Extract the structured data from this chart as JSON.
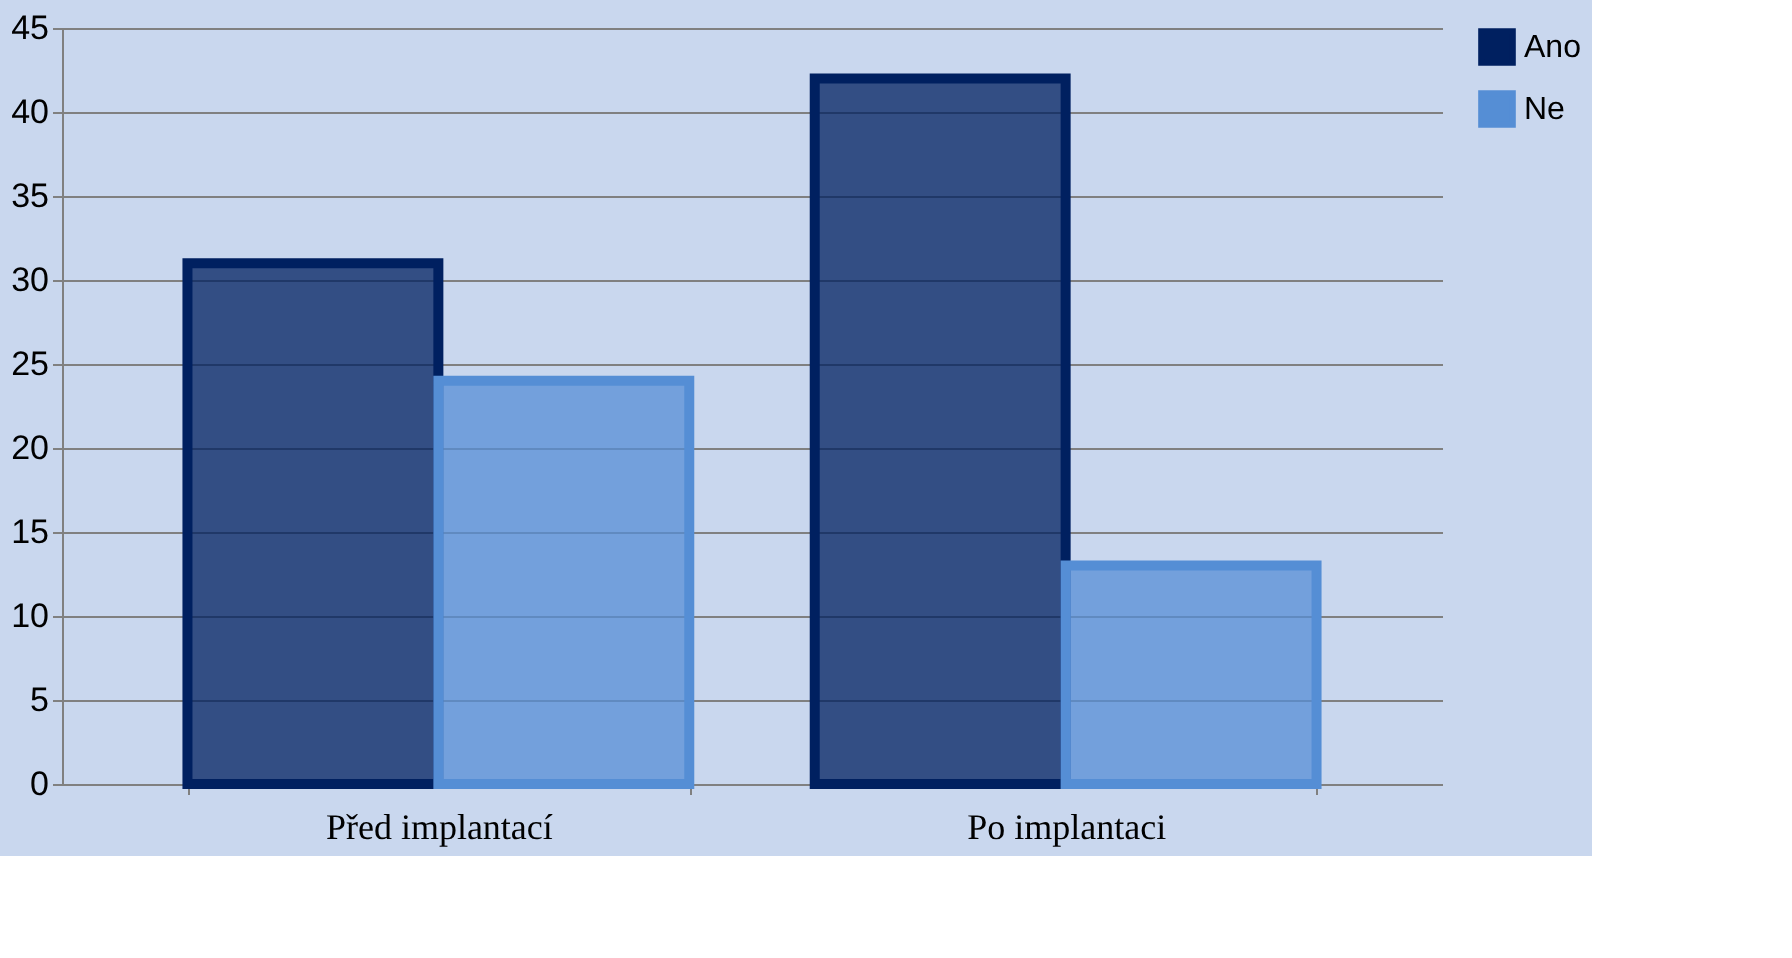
{
  "chart_data": {
    "type": "bar",
    "categories": [
      "Před implantací",
      "Po implantaci"
    ],
    "series": [
      {
        "name": "Ano",
        "color": "#002060",
        "values": [
          31,
          42
        ]
      },
      {
        "name": "Ne",
        "color": "#558ed5",
        "values": [
          24,
          13
        ]
      }
    ],
    "ylim": [
      0,
      45
    ],
    "yticks": [
      0,
      5,
      10,
      15,
      20,
      25,
      30,
      35,
      40,
      45
    ],
    "grid": "y",
    "legend": "right"
  }
}
